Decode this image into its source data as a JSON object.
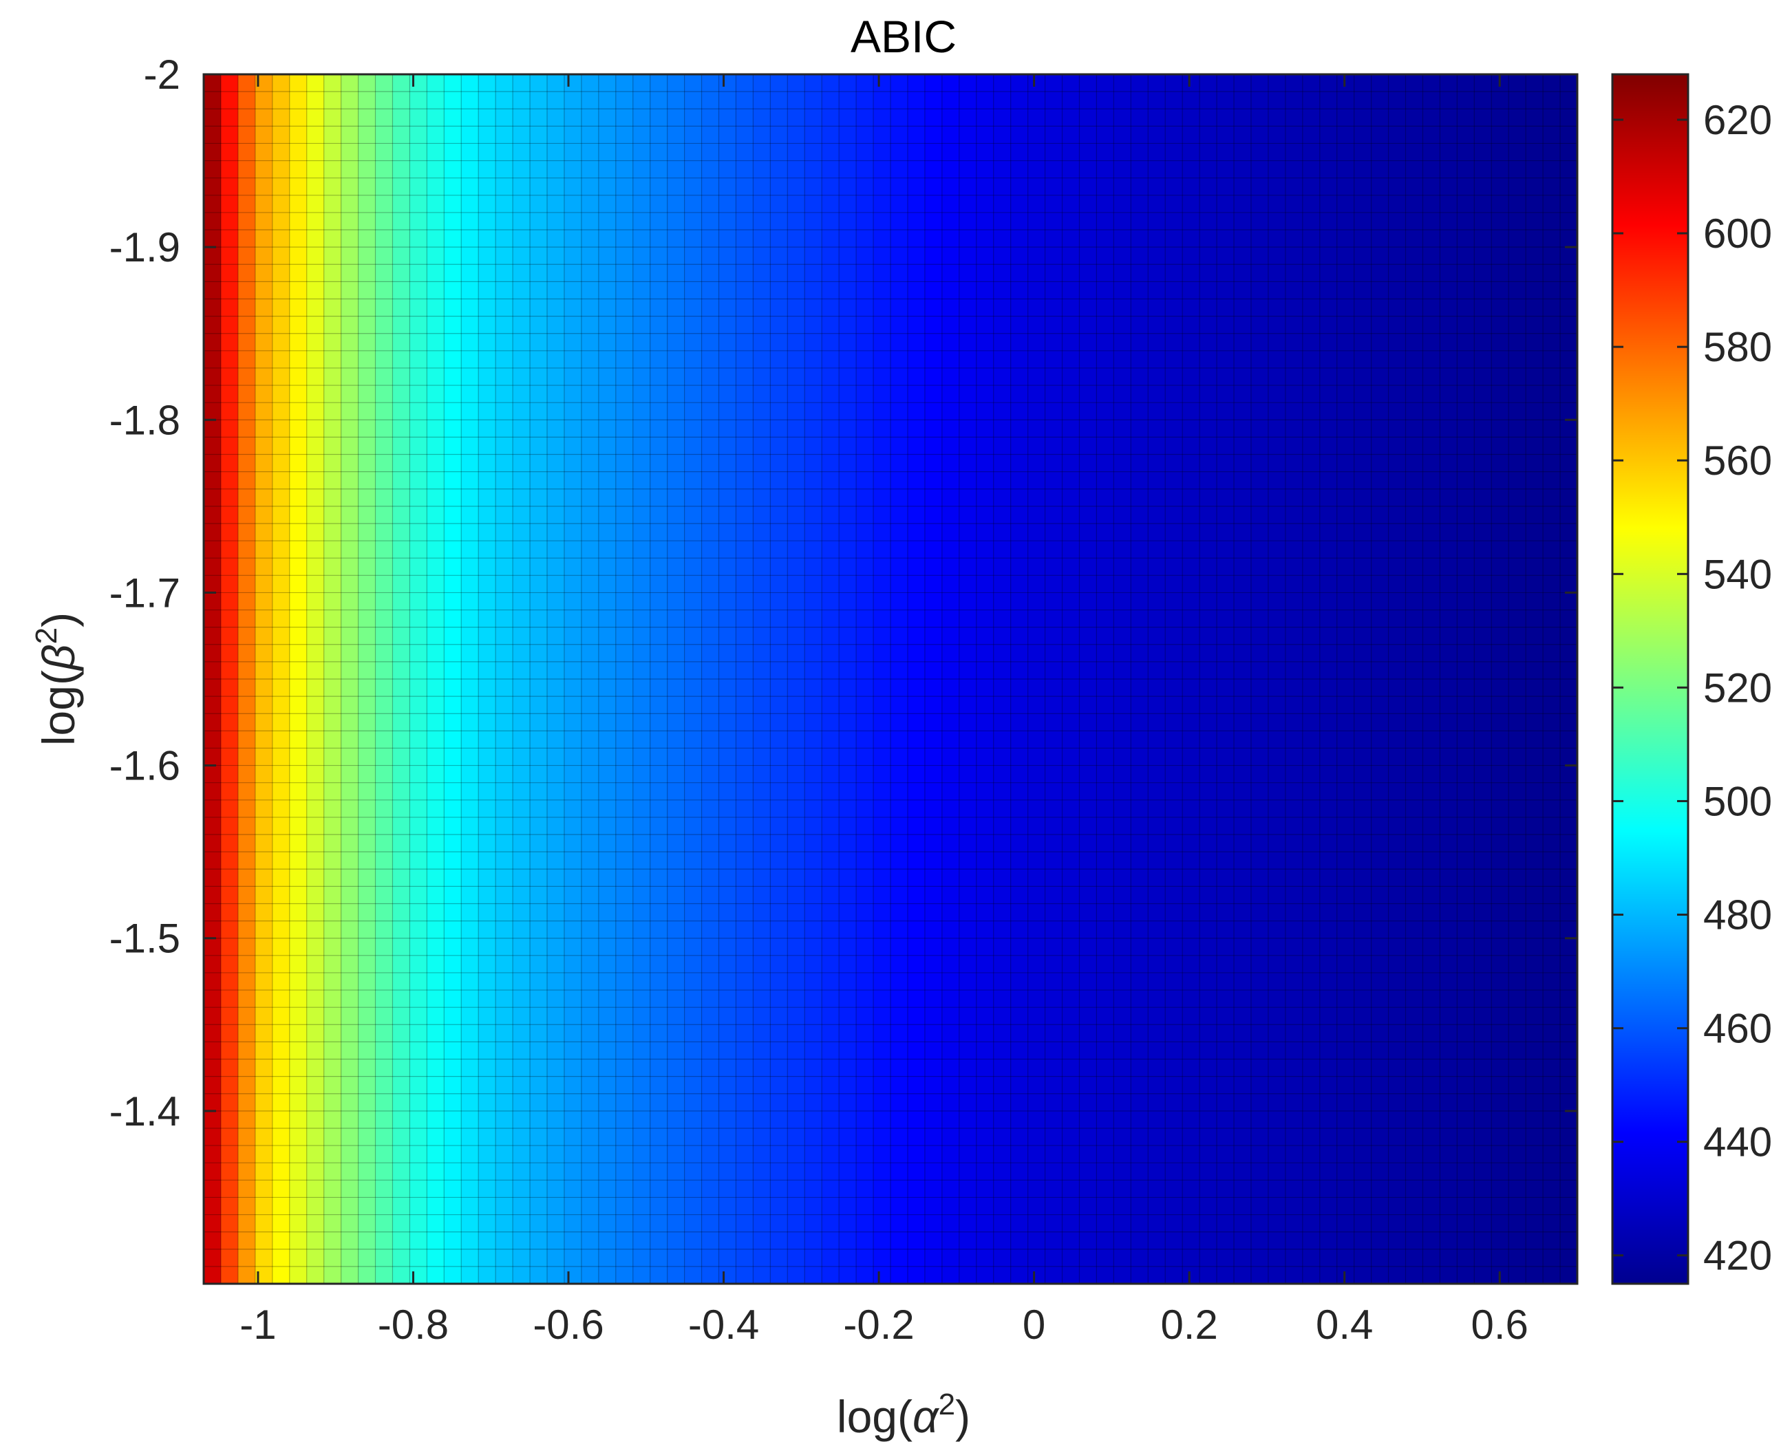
{
  "chart_data": {
    "type": "heatmap",
    "title": "ABIC",
    "xlabel": {
      "prefix": "log(",
      "symbol": "α",
      "exponent": "2",
      "suffix": ")"
    },
    "ylabel": {
      "prefix": "log(",
      "symbol": "β",
      "exponent": "2",
      "suffix": ")"
    },
    "xlim": [
      -1.07,
      0.7
    ],
    "ylim": [
      -2.0,
      -1.3
    ],
    "y_reversed": true,
    "x_ticks": [
      -1,
      -0.8,
      -0.6,
      -0.4,
      -0.2,
      0,
      0.2,
      0.4,
      0.6
    ],
    "y_ticks": [
      -2,
      -1.9,
      -1.8,
      -1.7,
      -1.6,
      -1.5,
      -1.4
    ],
    "colormap": "jet",
    "color_limits": [
      415,
      628
    ],
    "colorbar_ticks": [
      420,
      440,
      460,
      480,
      500,
      520,
      540,
      560,
      580,
      600,
      620
    ],
    "grid": {
      "x_cells": 80,
      "y_cells": 70,
      "show_cell_edges": true
    },
    "approx_value_at_x": {
      "x": [
        -1.07,
        -1.05,
        -1.0,
        -0.95,
        -0.9,
        -0.8,
        -0.7,
        -0.6,
        -0.5,
        -0.4,
        -0.3,
        -0.2,
        -0.1,
        0.0,
        0.2,
        0.4,
        0.7
      ],
      "value": [
        628,
        600,
        560,
        545,
        530,
        505,
        488,
        478,
        470,
        462,
        455,
        447,
        440,
        435,
        429,
        424,
        418
      ]
    }
  }
}
